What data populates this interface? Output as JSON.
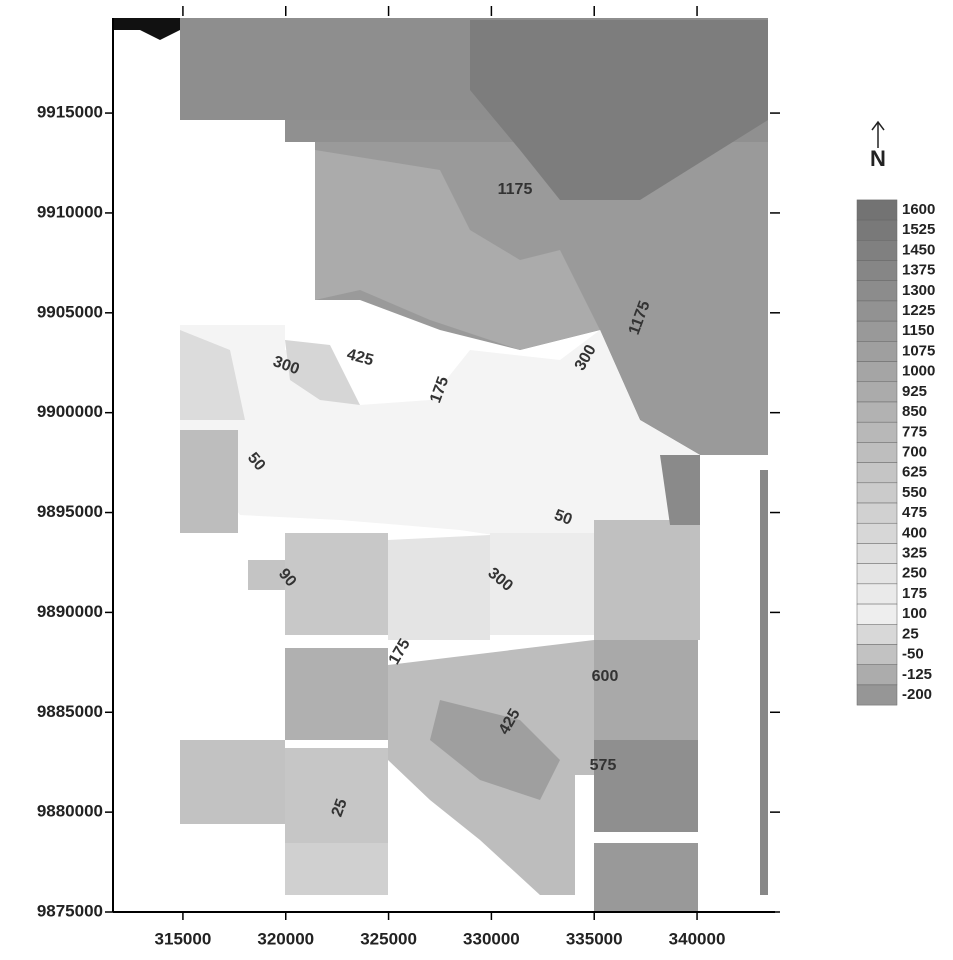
{
  "map": {
    "xlim": [
      311600,
      343450
    ],
    "ylim": [
      9875000,
      9919760
    ],
    "xticks": [
      315000,
      320000,
      325000,
      330000,
      335000,
      340000
    ],
    "yticks": [
      9875000,
      9880000,
      9885000,
      9890000,
      9895000,
      9900000,
      9905000,
      9910000,
      9915000
    ],
    "contour_labels": [
      "1175",
      "300",
      "425",
      "175",
      "300",
      "1175",
      "50",
      "50",
      "300",
      "90",
      "175",
      "600",
      "425",
      "575",
      "25"
    ],
    "north_label": "N",
    "legend": {
      "values": [
        1600,
        1525,
        1450,
        1375,
        1300,
        1225,
        1150,
        1075,
        1000,
        925,
        850,
        775,
        700,
        625,
        550,
        475,
        400,
        325,
        250,
        175,
        100,
        25,
        -50,
        -125,
        -200
      ]
    }
  }
}
